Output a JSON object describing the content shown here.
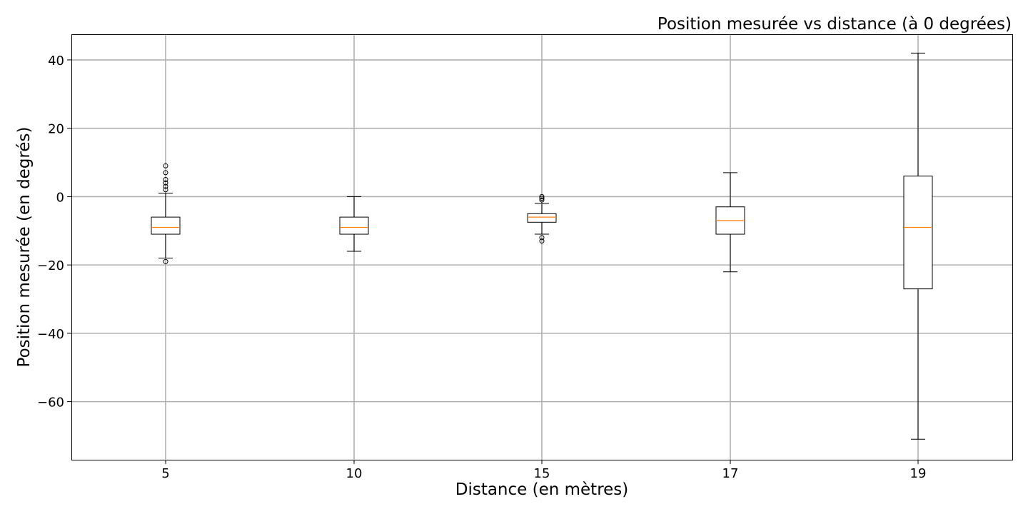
{
  "chart_data": {
    "type": "boxplot",
    "title": "Position mesurée vs distance (à 0 degrées)",
    "xlabel": "Distance (en mètres)",
    "ylabel": "Position mesurée (en degrés)",
    "categories": [
      "5",
      "10",
      "15",
      "17",
      "19"
    ],
    "ylim": [
      -77,
      47.5
    ],
    "yticks": [
      40,
      20,
      0,
      -20,
      -40,
      -60
    ],
    "ytick_labels": [
      "40",
      "20",
      "0",
      "−20",
      "−40",
      "−60"
    ],
    "grid": true,
    "boxes": [
      {
        "category": "5",
        "whisker_low": -18,
        "q1": -11,
        "median": -9,
        "q3": -6,
        "whisker_high": 1,
        "outliers": [
          9,
          7,
          5,
          4,
          3,
          2,
          -19
        ]
      },
      {
        "category": "10",
        "whisker_low": -16,
        "q1": -11,
        "median": -9,
        "q3": -6,
        "whisker_high": 0,
        "outliers": []
      },
      {
        "category": "15",
        "whisker_low": -11,
        "q1": -7.5,
        "median": -6,
        "q3": -5,
        "whisker_high": -2,
        "outliers": [
          0,
          -0.5,
          -1,
          -12,
          -13
        ]
      },
      {
        "category": "17",
        "whisker_low": -22,
        "q1": -11,
        "median": -7,
        "q3": -3,
        "whisker_high": 7,
        "outliers": []
      },
      {
        "category": "19",
        "whisker_low": -71,
        "q1": -27,
        "median": -9,
        "q3": 6,
        "whisker_high": 42,
        "outliers": []
      }
    ],
    "colors": {
      "box": "#000000",
      "median": "#ff7f0e",
      "grid": "#b0b0b0",
      "axes": "#000000"
    }
  }
}
